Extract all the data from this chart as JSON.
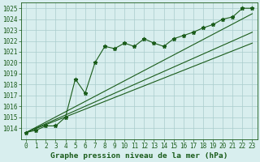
{
  "title": "Graphe pression niveau de la mer (hPa)",
  "x_values": [
    0,
    1,
    2,
    3,
    4,
    5,
    6,
    7,
    8,
    9,
    10,
    11,
    12,
    13,
    14,
    15,
    16,
    17,
    18,
    19,
    20,
    21,
    22,
    23
  ],
  "pressure_data": [
    1013.6,
    1013.8,
    1014.2,
    1014.2,
    1015.0,
    1018.5,
    1017.2,
    1020.0,
    1021.5,
    1021.3,
    1021.8,
    1021.5,
    1022.2,
    1021.8,
    1021.5,
    1022.2,
    1022.5,
    1022.8,
    1023.2,
    1023.5,
    1024.0,
    1024.2,
    1025.0,
    1025.0
  ],
  "trend1_x": [
    0,
    23
  ],
  "trend1_y": [
    1013.6,
    1024.5
  ],
  "trend2_x": [
    0,
    23
  ],
  "trend2_y": [
    1013.6,
    1022.8
  ],
  "trend3_x": [
    0,
    23
  ],
  "trend3_y": [
    1013.6,
    1021.8
  ],
  "ylim": [
    1013.0,
    1025.5
  ],
  "xlim": [
    -0.5,
    23.5
  ],
  "yticks": [
    1014,
    1015,
    1016,
    1017,
    1018,
    1019,
    1020,
    1021,
    1022,
    1023,
    1024,
    1025
  ],
  "xticks": [
    0,
    1,
    2,
    3,
    4,
    5,
    6,
    7,
    8,
    9,
    10,
    11,
    12,
    13,
    14,
    15,
    16,
    17,
    18,
    19,
    20,
    21,
    22,
    23
  ],
  "bg_color": "#d8eeee",
  "grid_color": "#aacccc",
  "line_color": "#1a5c1a",
  "marker_color": "#1a5c1a",
  "title_color": "#1a5c1a",
  "axis_color": "#1a5c1a",
  "tick_color": "#1a5c1a",
  "title_fontsize": 6.8,
  "tick_fontsize": 5.5,
  "figwidth": 3.2,
  "figheight": 2.0,
  "dpi": 100
}
